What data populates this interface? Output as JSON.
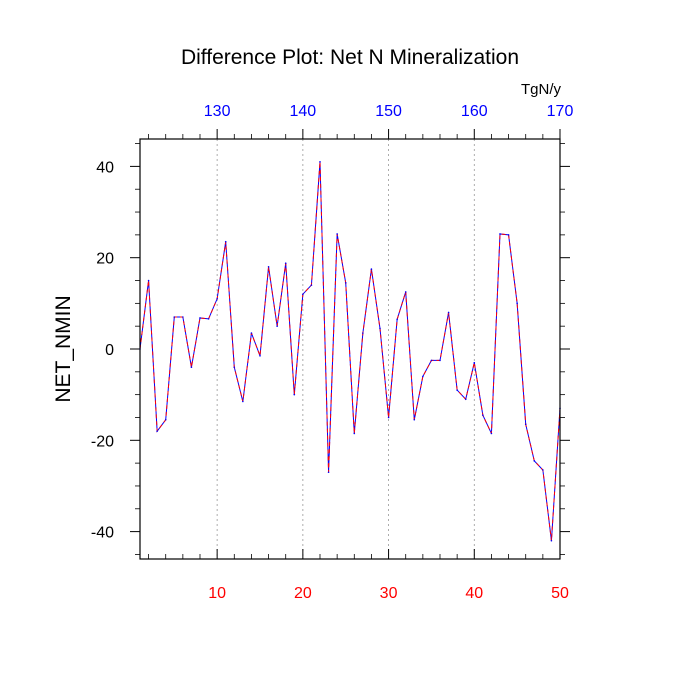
{
  "chart_data": {
    "type": "line",
    "title": "Difference Plot: Net N Mineralization",
    "ylabel": "NET_NMIN",
    "xlabel": "",
    "x_top_units": "TgN/y",
    "xlim": [
      1,
      50
    ],
    "ylim": [
      -46,
      46
    ],
    "x_bottom_ticks": [
      "10",
      "20",
      "30",
      "40",
      "50"
    ],
    "x_top_ticks": [
      "130",
      "140",
      "150",
      "160",
      "170"
    ],
    "y_ticks": [
      "40",
      "20",
      "0",
      "-20",
      "-40"
    ],
    "grid": "vertical dotted at major x ticks",
    "colors": {
      "bottom_tick_labels": "#ff0000",
      "top_tick_labels": "#0000ff",
      "series_dash": "#ff0000",
      "series_solid": "#0000ff"
    },
    "series": [
      {
        "name": "NET_NMIN",
        "x": [
          1,
          2,
          3,
          4,
          5,
          6,
          7,
          8,
          9,
          10,
          11,
          12,
          13,
          14,
          15,
          16,
          17,
          18,
          19,
          20,
          21,
          22,
          23,
          24,
          25,
          26,
          27,
          28,
          29,
          30,
          31,
          32,
          33,
          34,
          35,
          36,
          37,
          38,
          39,
          40,
          41,
          42,
          43,
          44,
          45,
          46,
          47,
          48,
          49,
          50
        ],
        "values": [
          0,
          15,
          -18,
          -15.5,
          7,
          7,
          -4,
          6.8,
          6.6,
          11,
          23.5,
          -4,
          -11.5,
          3.5,
          -1.5,
          18,
          5,
          18.8,
          -10,
          12,
          14,
          41,
          -27,
          25.2,
          14.5,
          -18.5,
          3.5,
          17.5,
          4.5,
          -15,
          6.5,
          12.5,
          -15.5,
          -6,
          -2.5,
          -2.5,
          8,
          -9,
          -11,
          -3,
          -14.5,
          -18.5,
          25.2,
          25,
          10,
          -16.5,
          -24.5,
          -26.5,
          -42,
          -13
        ]
      }
    ]
  }
}
